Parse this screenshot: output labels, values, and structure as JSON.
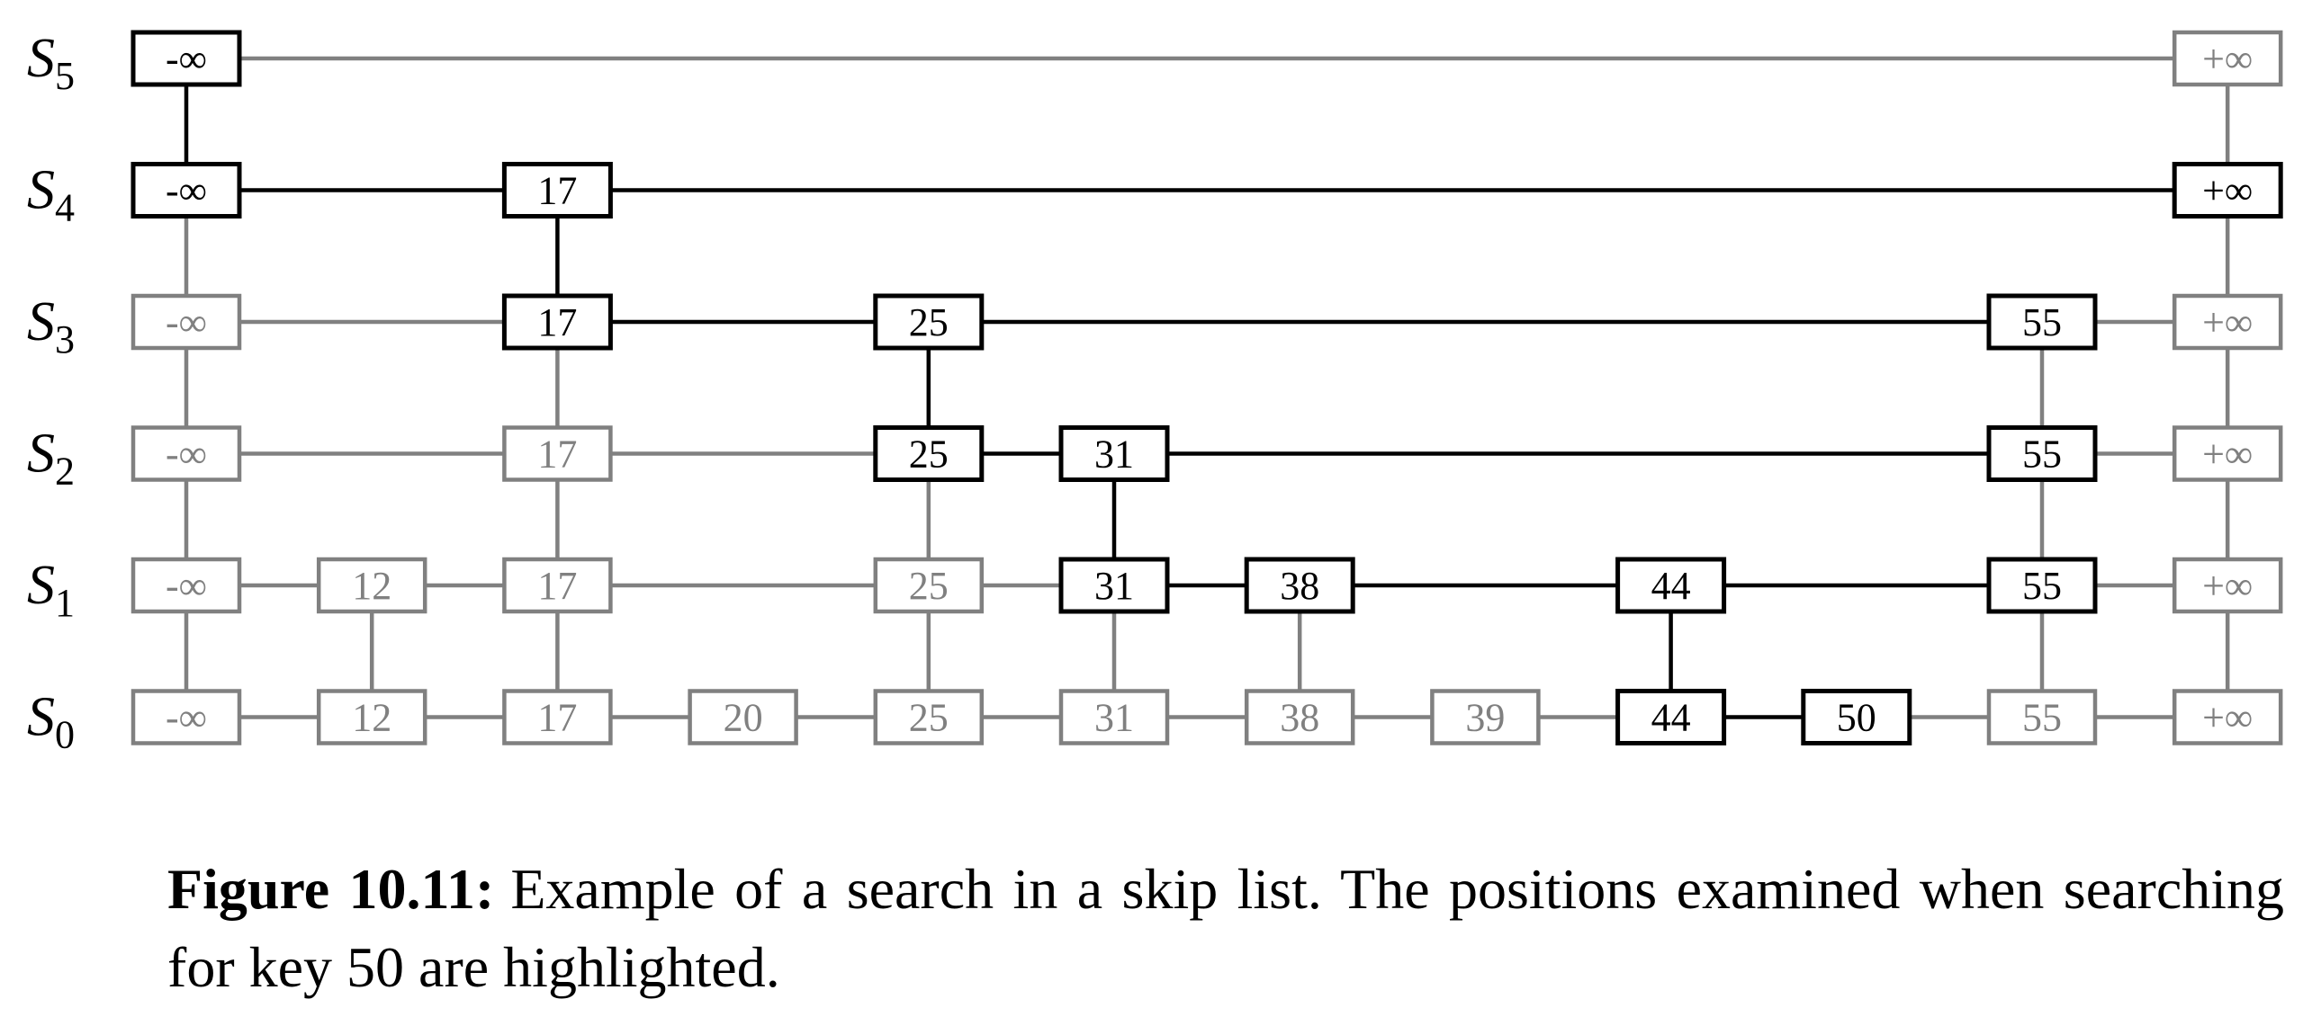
{
  "diagram": {
    "levels": [
      {
        "name": "S",
        "sub": "5",
        "nodes": [
          {
            "key": "-∞",
            "col": 0,
            "hl": true
          },
          {
            "key": "+∞",
            "col": 11,
            "hl": false
          }
        ]
      },
      {
        "name": "S",
        "sub": "4",
        "nodes": [
          {
            "key": "-∞",
            "col": 0,
            "hl": true
          },
          {
            "key": "17",
            "col": 2,
            "hl": true
          },
          {
            "key": "+∞",
            "col": 11,
            "hl": true
          }
        ]
      },
      {
        "name": "S",
        "sub": "3",
        "nodes": [
          {
            "key": "-∞",
            "col": 0,
            "hl": false
          },
          {
            "key": "17",
            "col": 2,
            "hl": true
          },
          {
            "key": "25",
            "col": 4,
            "hl": true
          },
          {
            "key": "55",
            "col": 10,
            "hl": true
          },
          {
            "key": "+∞",
            "col": 11,
            "hl": false
          }
        ]
      },
      {
        "name": "S",
        "sub": "2",
        "nodes": [
          {
            "key": "-∞",
            "col": 0,
            "hl": false
          },
          {
            "key": "17",
            "col": 2,
            "hl": false
          },
          {
            "key": "25",
            "col": 4,
            "hl": true
          },
          {
            "key": "31",
            "col": 5,
            "hl": true
          },
          {
            "key": "55",
            "col": 10,
            "hl": true
          },
          {
            "key": "+∞",
            "col": 11,
            "hl": false
          }
        ]
      },
      {
        "name": "S",
        "sub": "1",
        "nodes": [
          {
            "key": "-∞",
            "col": 0,
            "hl": false
          },
          {
            "key": "12",
            "col": 1,
            "hl": false
          },
          {
            "key": "17",
            "col": 2,
            "hl": false
          },
          {
            "key": "25",
            "col": 4,
            "hl": false
          },
          {
            "key": "31",
            "col": 5,
            "hl": true
          },
          {
            "key": "38",
            "col": 6,
            "hl": true
          },
          {
            "key": "44",
            "col": 8,
            "hl": true
          },
          {
            "key": "55",
            "col": 10,
            "hl": true
          },
          {
            "key": "+∞",
            "col": 11,
            "hl": false
          }
        ]
      },
      {
        "name": "S",
        "sub": "0",
        "nodes": [
          {
            "key": "-∞",
            "col": 0,
            "hl": false
          },
          {
            "key": "12",
            "col": 1,
            "hl": false
          },
          {
            "key": "17",
            "col": 2,
            "hl": false
          },
          {
            "key": "20",
            "col": 3,
            "hl": false
          },
          {
            "key": "25",
            "col": 4,
            "hl": false
          },
          {
            "key": "31",
            "col": 5,
            "hl": false
          },
          {
            "key": "38",
            "col": 6,
            "hl": false
          },
          {
            "key": "39",
            "col": 7,
            "hl": false
          },
          {
            "key": "44",
            "col": 8,
            "hl": true
          },
          {
            "key": "50",
            "col": 9,
            "hl": true
          },
          {
            "key": "55",
            "col": 10,
            "hl": false
          },
          {
            "key": "+∞",
            "col": 11,
            "hl": false
          }
        ]
      }
    ],
    "highlight_horizontal": [
      {
        "level": 4,
        "from": 0,
        "to": 2
      },
      {
        "level": 4,
        "from": 2,
        "to": 11
      },
      {
        "level": 3,
        "from": 2,
        "to": 4
      },
      {
        "level": 3,
        "from": 4,
        "to": 10
      },
      {
        "level": 2,
        "from": 4,
        "to": 5
      },
      {
        "level": 2,
        "from": 5,
        "to": 10
      },
      {
        "level": 1,
        "from": 5,
        "to": 6
      },
      {
        "level": 1,
        "from": 6,
        "to": 8
      },
      {
        "level": 1,
        "from": 8,
        "to": 10
      },
      {
        "level": 0,
        "from": 8,
        "to": 9
      }
    ],
    "highlight_vertical": [
      {
        "col": 0,
        "from": 5,
        "to": 4
      },
      {
        "col": 2,
        "from": 4,
        "to": 3
      },
      {
        "col": 4,
        "from": 3,
        "to": 2
      },
      {
        "col": 5,
        "from": 2,
        "to": 1
      },
      {
        "col": 8,
        "from": 1,
        "to": 0
      }
    ],
    "colors": {
      "highlight": "#000000",
      "normal": "#808080",
      "background": "#ffffff"
    }
  },
  "caption": {
    "label": "Figure 10.11:",
    "text": "Example of a search in a skip list. The positions examined when searching for key 50 are highlighted."
  }
}
